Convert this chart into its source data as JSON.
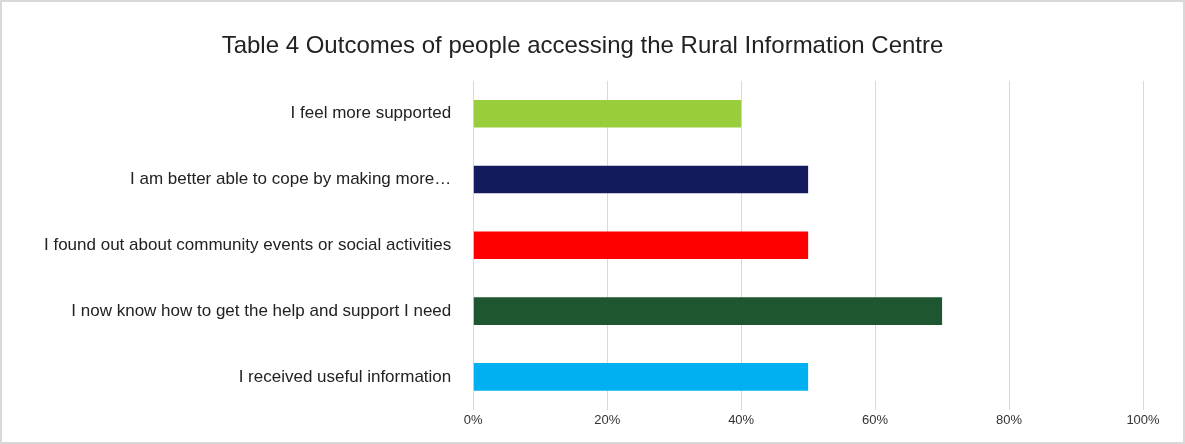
{
  "chart_data": {
    "type": "bar",
    "orientation": "horizontal",
    "title": "Table 4 Outcomes of people accessing the Rural Information Centre",
    "categories": [
      "I feel more supported",
      "I am better able to cope by making more…",
      "I found out about community events or social activities",
      "I now know how to get the help and support I need",
      "I received useful information"
    ],
    "values": [
      40,
      50,
      50,
      70,
      50
    ],
    "colors": [
      "#9acd3c",
      "#141a5e",
      "#ff0000",
      "#1e5631",
      "#00b0f0"
    ],
    "xlim": [
      0,
      100
    ],
    "xticks": [
      {
        "value": 0,
        "label": "0%"
      },
      {
        "value": 20,
        "label": "20%"
      },
      {
        "value": 40,
        "label": "40%"
      },
      {
        "value": 60,
        "label": "60%"
      },
      {
        "value": 80,
        "label": "80%"
      },
      {
        "value": 100,
        "label": "100%"
      }
    ],
    "grid": "x",
    "legend": false
  }
}
